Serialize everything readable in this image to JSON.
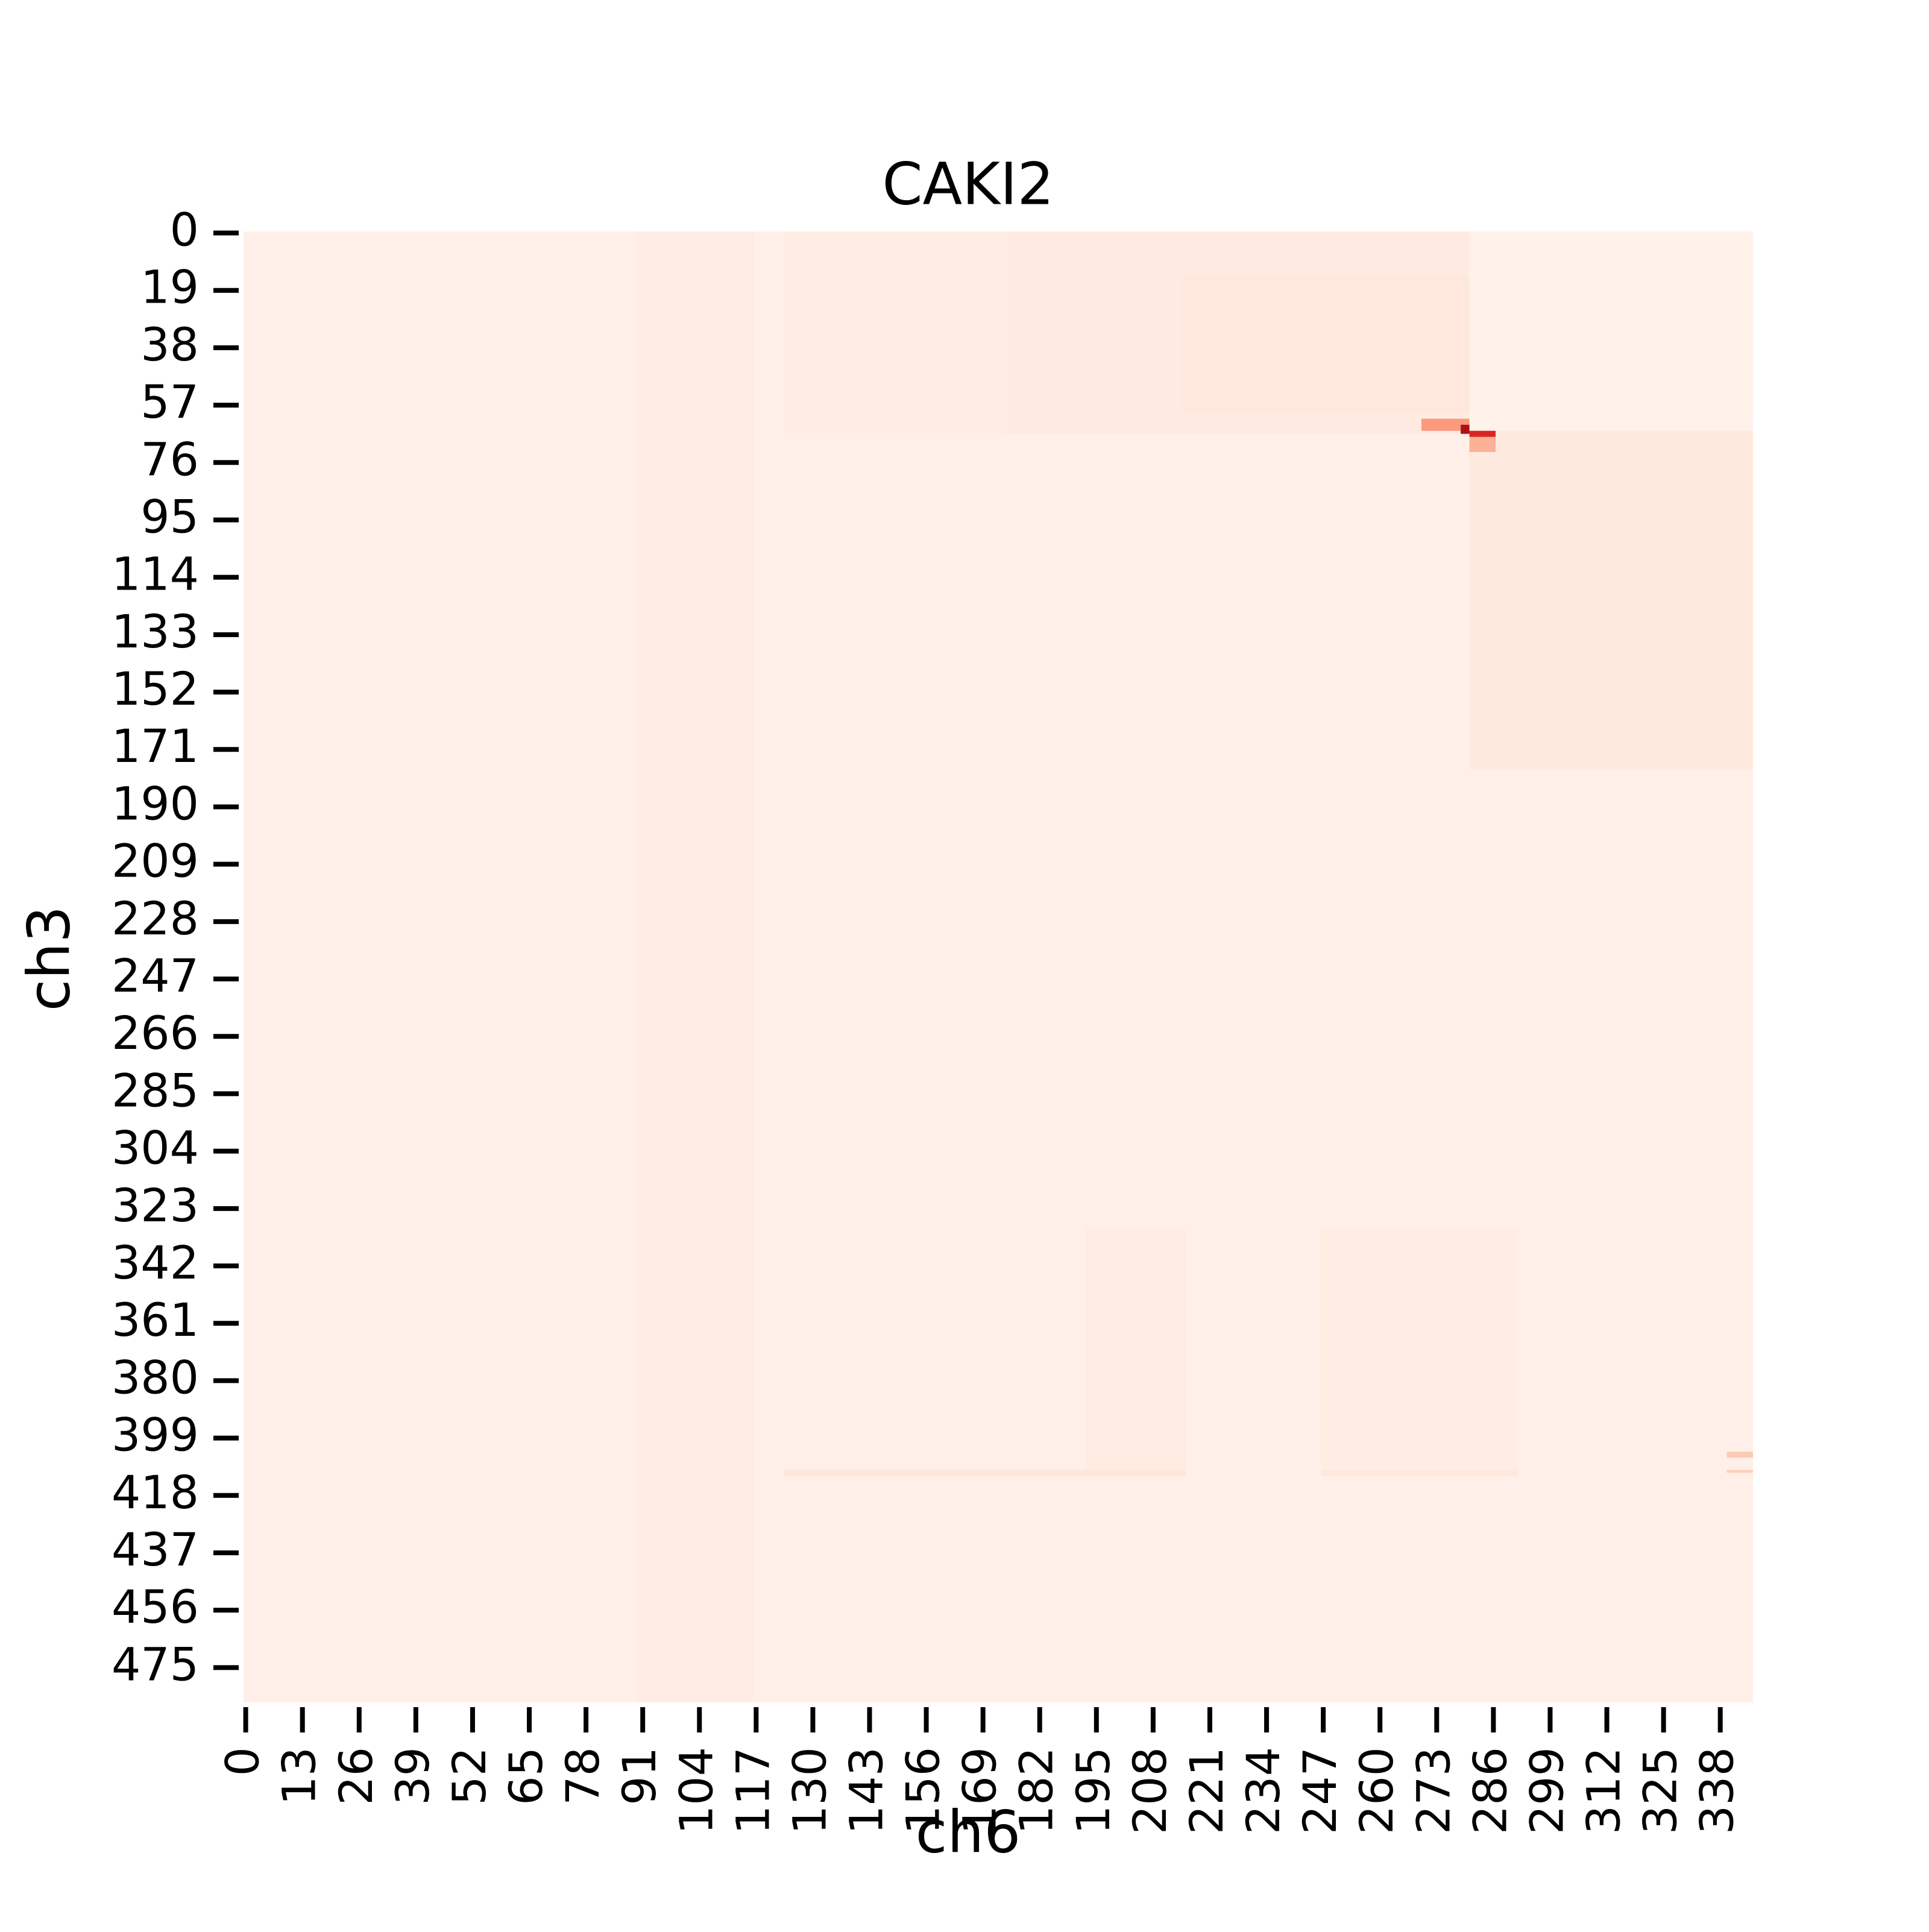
{
  "chart_data": {
    "type": "heatmap",
    "title": "CAKI2",
    "xlabel": "ch6",
    "ylabel": "ch3",
    "x_count": 346,
    "y_count": 487,
    "x_ticks": [
      0,
      13,
      26,
      39,
      52,
      65,
      78,
      91,
      104,
      117,
      130,
      143,
      156,
      169,
      182,
      195,
      208,
      221,
      234,
      247,
      260,
      273,
      286,
      299,
      312,
      325,
      338
    ],
    "y_ticks": [
      0,
      19,
      38,
      57,
      76,
      95,
      114,
      133,
      152,
      171,
      190,
      209,
      228,
      247,
      266,
      285,
      304,
      323,
      342,
      361,
      380,
      399,
      418,
      437,
      456,
      475
    ],
    "colormap": "Reds",
    "background_value": 0.03,
    "value_range": [
      0,
      1
    ],
    "colorbar": false,
    "grid": false,
    "regions": [
      {
        "x": [
          0,
          346
        ],
        "y": [
          0,
          487
        ],
        "value": 0.035
      },
      {
        "x": [
          90,
          117
        ],
        "y": [
          0,
          487
        ],
        "value": 0.045
      },
      {
        "x": [
          124,
          346
        ],
        "y": [
          0,
          67
        ],
        "value": 0.05
      },
      {
        "x": [
          175,
          281
        ],
        "y": [
          0,
          67
        ],
        "value": 0.065
      },
      {
        "x": [
          215,
          281
        ],
        "y": [
          15,
          60
        ],
        "value": 0.085
      },
      {
        "x": [
          281,
          346
        ],
        "y": [
          0,
          66
        ],
        "value": 0.02
      },
      {
        "x": [
          281,
          346
        ],
        "y": [
          66,
          178
        ],
        "value": 0.07
      },
      {
        "x": [
          281,
          346
        ],
        "y": [
          178,
          487
        ],
        "value": 0.035
      },
      {
        "x": [
          193,
          216
        ],
        "y": [
          330,
          412
        ],
        "value": 0.06
      },
      {
        "x": [
          247,
          292
        ],
        "y": [
          330,
          412
        ],
        "value": 0.055
      },
      {
        "x": [
          124,
          216
        ],
        "y": [
          410,
          412
        ],
        "value": 0.09
      },
      {
        "x": [
          247,
          292
        ],
        "y": [
          410,
          412
        ],
        "value": 0.08
      },
      {
        "x": [
          340,
          346
        ],
        "y": [
          404,
          406
        ],
        "value": 0.2
      },
      {
        "x": [
          340,
          346
        ],
        "y": [
          410,
          411
        ],
        "value": 0.18
      },
      {
        "x": [
          281,
          287
        ],
        "y": [
          66,
          73
        ],
        "value": 0.28
      },
      {
        "x": [
          270,
          281
        ],
        "y": [
          62,
          66
        ],
        "value": 0.35
      },
      {
        "x": [
          279,
          281
        ],
        "y": [
          64,
          67
        ],
        "value": 0.85
      },
      {
        "x": [
          281,
          287
        ],
        "y": [
          66,
          68
        ],
        "value": 0.7
      }
    ]
  }
}
